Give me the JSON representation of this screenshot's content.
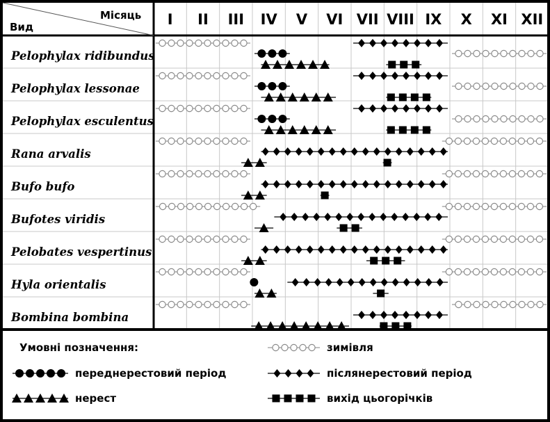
{
  "chart_data": {
    "type": "table",
    "header": {
      "species_col": "Вид",
      "month_col": "Місяць"
    },
    "months": [
      "I",
      "II",
      "III",
      "IV",
      "V",
      "VI",
      "VII",
      "VIII",
      "IX",
      "X",
      "XI",
      "XII"
    ],
    "legend_title": "Умовні позначення:",
    "legend": [
      {
        "key": "hibernation",
        "label": "зимівля"
      },
      {
        "key": "prespawn",
        "label": "переднерестовий період"
      },
      {
        "key": "postspawn",
        "label": "післянерестовий період"
      },
      {
        "key": "spawn",
        "label": "нерест"
      },
      {
        "key": "juvenile",
        "label": "вихід цьогорічків"
      }
    ],
    "species": [
      {
        "name": "Pelophylax ridibundus",
        "periods": [
          {
            "kind": "hibernation",
            "start": 1.0,
            "end": 4.0,
            "lane": 0
          },
          {
            "kind": "postspawn",
            "start": 7.0,
            "end": 10.0,
            "lane": 0
          },
          {
            "kind": "prespawn",
            "start": 4.0,
            "end": 5.2,
            "lane": 1
          },
          {
            "kind": "hibernation",
            "start": 10.0,
            "end": 13.0,
            "lane": 1
          },
          {
            "kind": "spawn",
            "start": 4.2,
            "end": 6.4,
            "lane": 2
          },
          {
            "kind": "juvenile",
            "start": 8.0,
            "end": 9.2,
            "lane": 2
          }
        ]
      },
      {
        "name": "Pelophylax lessonae",
        "periods": [
          {
            "kind": "hibernation",
            "start": 1.0,
            "end": 4.0,
            "lane": 0
          },
          {
            "kind": "postspawn",
            "start": 7.0,
            "end": 10.0,
            "lane": 0
          },
          {
            "kind": "prespawn",
            "start": 4.0,
            "end": 5.2,
            "lane": 1
          },
          {
            "kind": "hibernation",
            "start": 10.0,
            "end": 13.0,
            "lane": 1
          },
          {
            "kind": "spawn",
            "start": 4.2,
            "end": 6.6,
            "lane": 2
          },
          {
            "kind": "juvenile",
            "start": 8.0,
            "end": 9.5,
            "lane": 2
          }
        ]
      },
      {
        "name": "Pelophylax esculentus",
        "periods": [
          {
            "kind": "hibernation",
            "start": 1.0,
            "end": 4.0,
            "lane": 0
          },
          {
            "kind": "postspawn",
            "start": 7.0,
            "end": 10.0,
            "lane": 0
          },
          {
            "kind": "prespawn",
            "start": 4.0,
            "end": 5.2,
            "lane": 1
          },
          {
            "kind": "hibernation",
            "start": 10.0,
            "end": 13.0,
            "lane": 1
          },
          {
            "kind": "spawn",
            "start": 4.2,
            "end": 6.6,
            "lane": 2
          },
          {
            "kind": "juvenile",
            "start": 8.0,
            "end": 9.5,
            "lane": 2
          }
        ]
      },
      {
        "name": "Rana arvalis",
        "periods": [
          {
            "kind": "hibernation",
            "start": 1.0,
            "end": 4.0,
            "lane": 0
          },
          {
            "kind": "hibernation",
            "start": 9.7,
            "end": 13.0,
            "lane": 0
          },
          {
            "kind": "postspawn",
            "start": 4.2,
            "end": 10.0,
            "lane": 1
          },
          {
            "kind": "spawn",
            "start": 3.6,
            "end": 4.5,
            "lane": 2
          },
          {
            "kind": "juvenile",
            "start": 7.9,
            "end": 8.3,
            "lane": 2
          }
        ]
      },
      {
        "name": "Bufo bufo",
        "periods": [
          {
            "kind": "hibernation",
            "start": 1.0,
            "end": 4.0,
            "lane": 0
          },
          {
            "kind": "hibernation",
            "start": 9.7,
            "end": 13.0,
            "lane": 0
          },
          {
            "kind": "postspawn",
            "start": 4.2,
            "end": 10.0,
            "lane": 1
          },
          {
            "kind": "spawn",
            "start": 3.6,
            "end": 4.5,
            "lane": 2
          },
          {
            "kind": "juvenile",
            "start": 6.0,
            "end": 6.4,
            "lane": 2
          }
        ]
      },
      {
        "name": "Bufotes viridis",
        "periods": [
          {
            "kind": "hibernation",
            "start": 1.0,
            "end": 4.3,
            "lane": 0
          },
          {
            "kind": "hibernation",
            "start": 9.7,
            "end": 13.0,
            "lane": 0
          },
          {
            "kind": "postspawn",
            "start": 4.6,
            "end": 10.0,
            "lane": 1
          },
          {
            "kind": "spawn",
            "start": 4.0,
            "end": 4.7,
            "lane": 2
          },
          {
            "kind": "juvenile",
            "start": 6.5,
            "end": 7.4,
            "lane": 2
          }
        ]
      },
      {
        "name": "Pelobates vespertinus",
        "periods": [
          {
            "kind": "hibernation",
            "start": 1.0,
            "end": 4.0,
            "lane": 0
          },
          {
            "kind": "hibernation",
            "start": 9.7,
            "end": 13.0,
            "lane": 0
          },
          {
            "kind": "postspawn",
            "start": 4.2,
            "end": 10.0,
            "lane": 1
          },
          {
            "kind": "spawn",
            "start": 3.6,
            "end": 4.5,
            "lane": 2
          },
          {
            "kind": "juvenile",
            "start": 7.4,
            "end": 8.7,
            "lane": 2
          }
        ]
      },
      {
        "name": "Hyla orientalis",
        "periods": [
          {
            "kind": "hibernation",
            "start": 1.0,
            "end": 4.0,
            "lane": 0
          },
          {
            "kind": "hibernation",
            "start": 9.7,
            "end": 13.0,
            "lane": 0
          },
          {
            "kind": "prespawn",
            "start": 3.9,
            "end": 4.2,
            "lane": 1
          },
          {
            "kind": "postspawn",
            "start": 5.0,
            "end": 10.0,
            "lane": 1
          },
          {
            "kind": "spawn",
            "start": 4.0,
            "end": 4.8,
            "lane": 2
          },
          {
            "kind": "juvenile",
            "start": 7.6,
            "end": 8.2,
            "lane": 2
          }
        ]
      },
      {
        "name": "Bombina bombina",
        "periods": [
          {
            "kind": "hibernation",
            "start": 1.0,
            "end": 4.0,
            "lane": 0
          },
          {
            "kind": "hibernation",
            "start": 10.0,
            "end": 13.0,
            "lane": 0
          },
          {
            "kind": "postspawn",
            "start": 7.0,
            "end": 10.0,
            "lane": 1
          },
          {
            "kind": "spawn",
            "start": 3.9,
            "end": 7.0,
            "lane": 2
          },
          {
            "kind": "juvenile",
            "start": 7.8,
            "end": 8.9,
            "lane": 2
          }
        ]
      }
    ]
  }
}
